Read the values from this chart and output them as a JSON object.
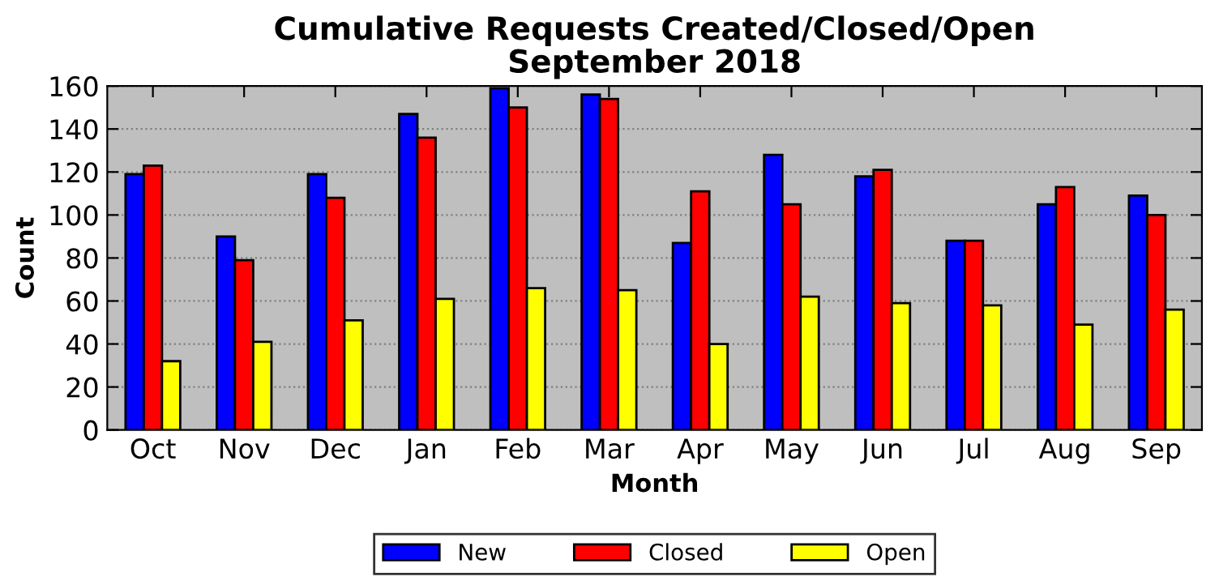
{
  "chart_data": {
    "type": "bar",
    "title": "Cumulative Requests Created/Closed/Open\nSeptember 2018",
    "xlabel": "Month",
    "ylabel": "Count",
    "categories": [
      "Oct",
      "Nov",
      "Dec",
      "Jan",
      "Feb",
      "Mar",
      "Apr",
      "May",
      "Jun",
      "Jul",
      "Aug",
      "Sep"
    ],
    "series": [
      {
        "name": "New",
        "color": "#0000ff",
        "values": [
          119,
          90,
          119,
          147,
          159,
          156,
          87,
          128,
          118,
          88,
          105,
          109
        ]
      },
      {
        "name": "Closed",
        "color": "#ff0000",
        "values": [
          123,
          79,
          108,
          136,
          150,
          154,
          111,
          105,
          121,
          88,
          113,
          100
        ]
      },
      {
        "name": "Open",
        "color": "#ffff00",
        "values": [
          32,
          41,
          51,
          61,
          66,
          65,
          40,
          62,
          59,
          58,
          49,
          56
        ]
      }
    ],
    "ylim": [
      0,
      160
    ],
    "yticks": [
      0,
      20,
      40,
      60,
      80,
      100,
      120,
      140,
      160
    ],
    "grid": "y",
    "legend": "bottom"
  }
}
